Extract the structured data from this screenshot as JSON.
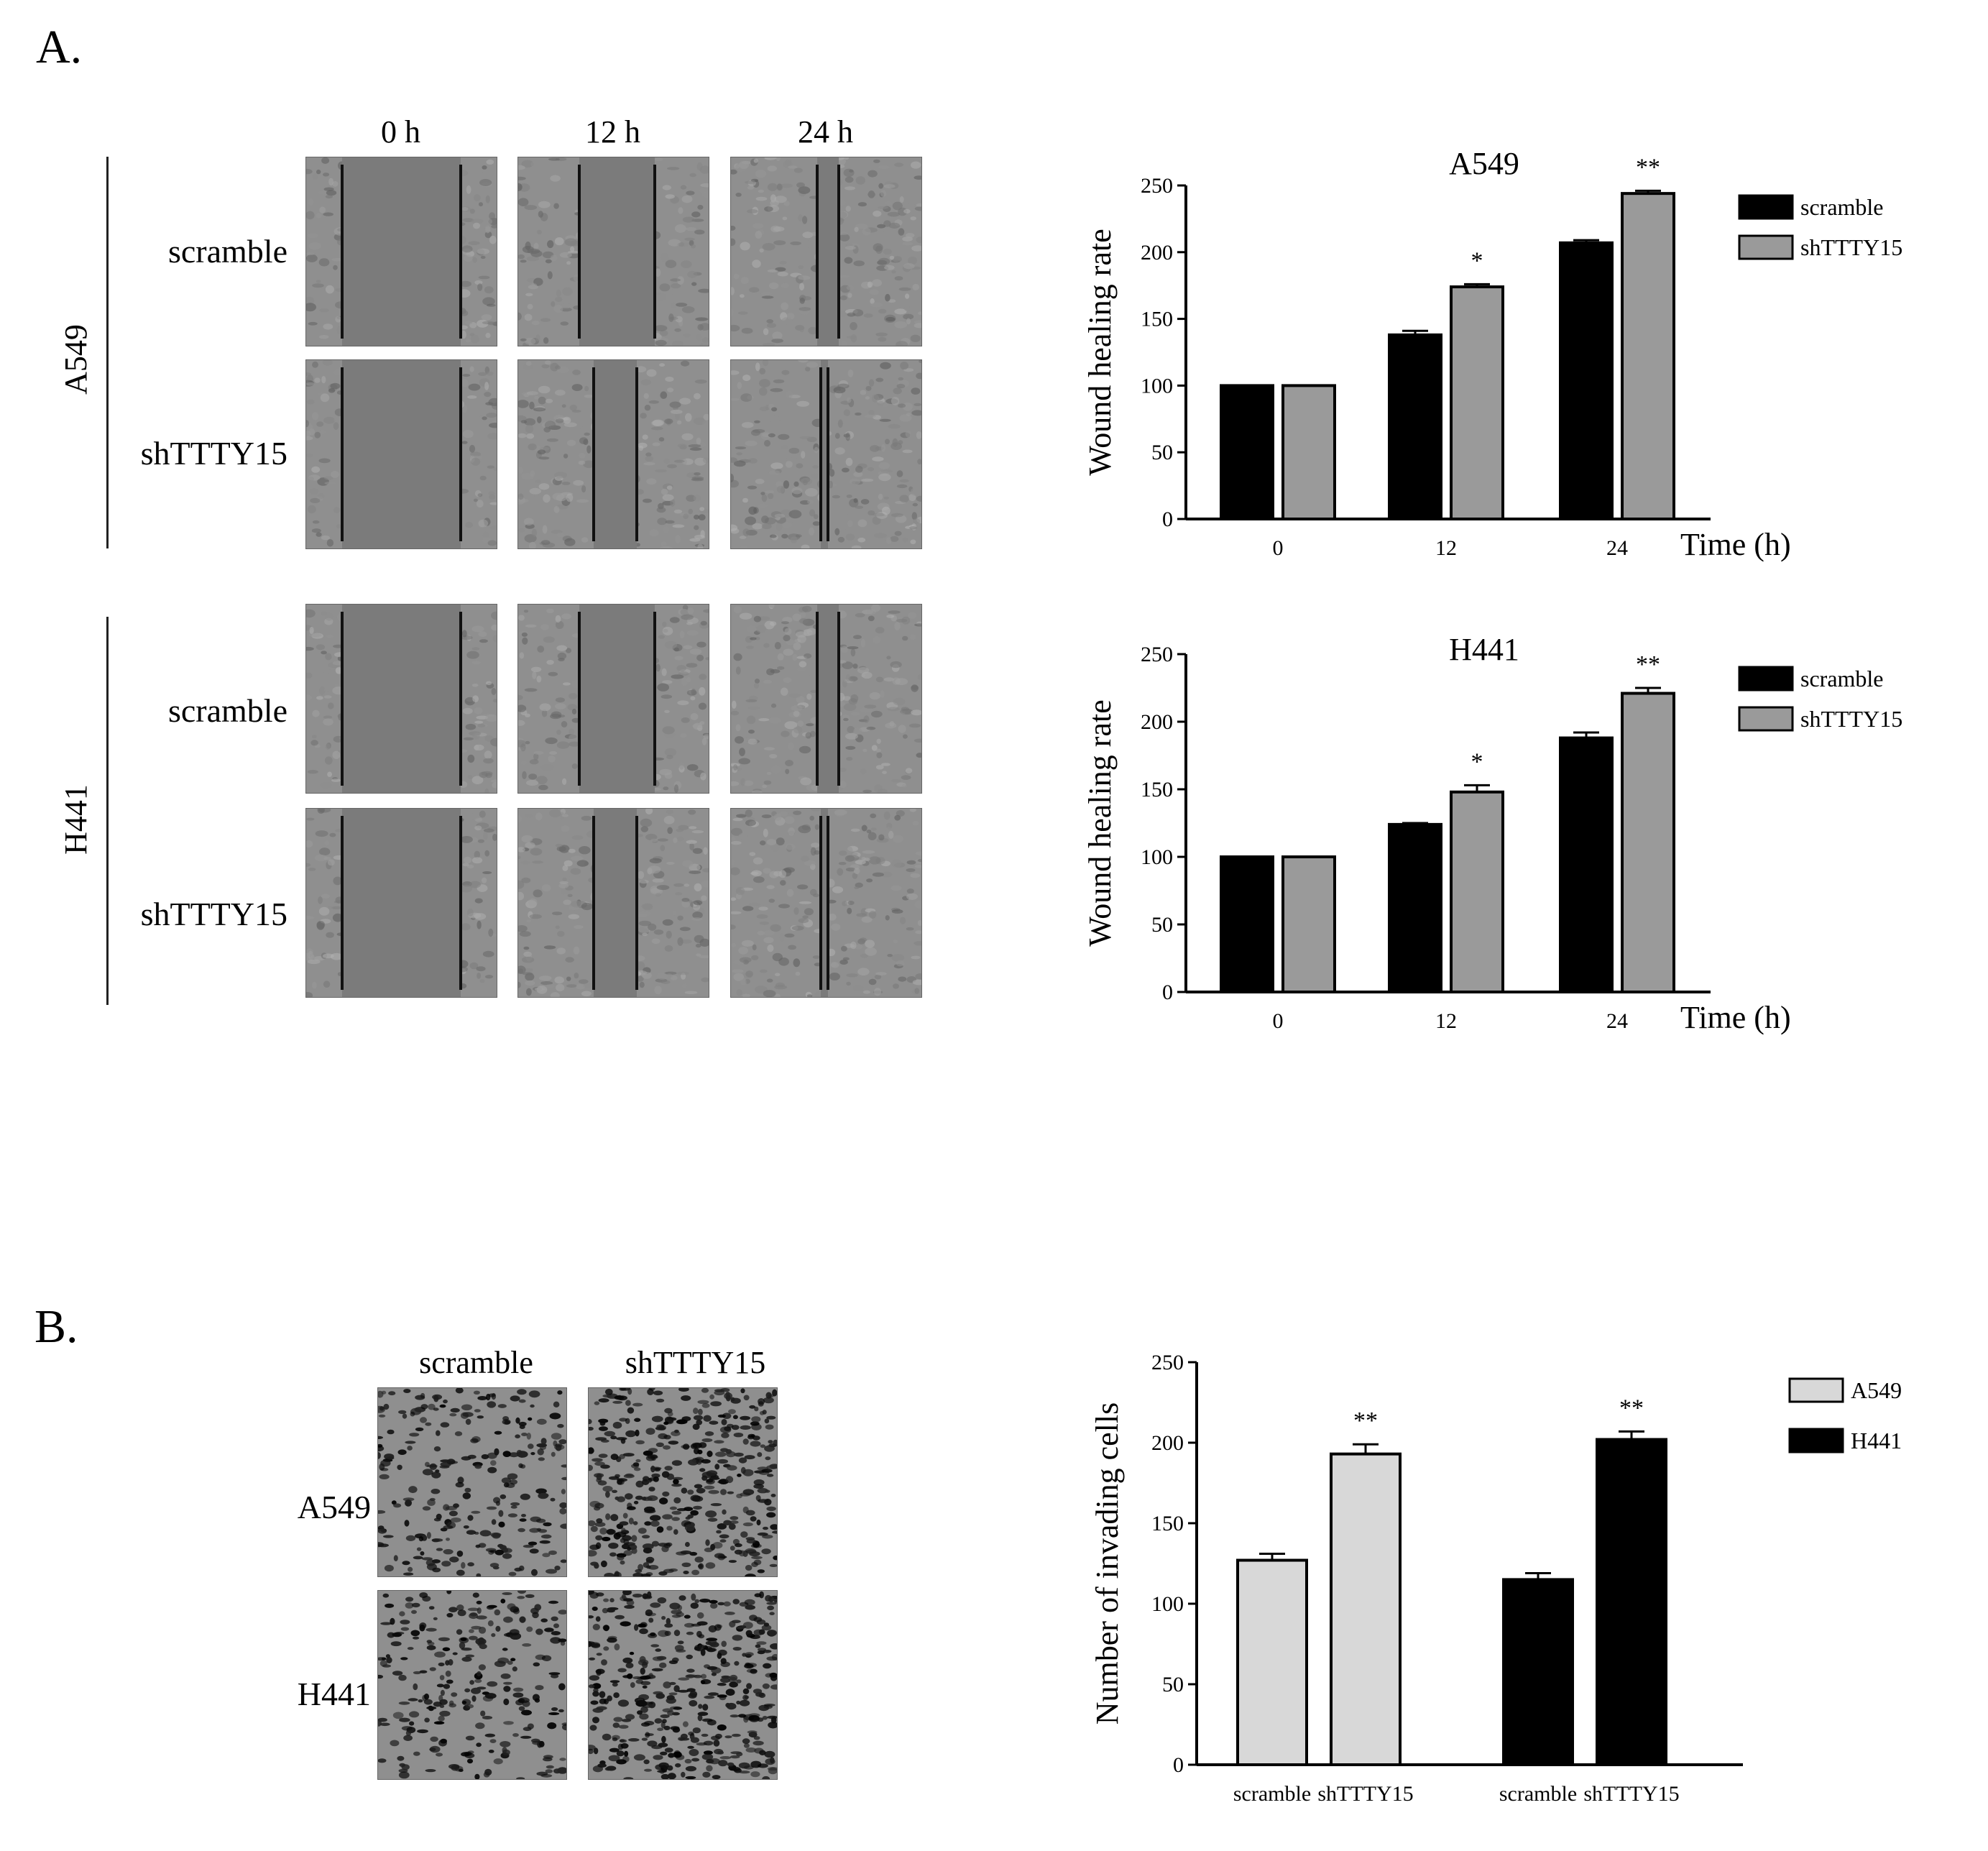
{
  "panels": {
    "A": {
      "letter": "A.",
      "wound_images": {
        "time_labels": [
          "0 h",
          "12 h",
          "24 h"
        ],
        "groups": [
          {
            "name": "A549",
            "rows": [
              "scramble",
              "shTTTY15"
            ]
          },
          {
            "name": "H441",
            "rows": [
              "scramble",
              "shTTTY15"
            ]
          }
        ]
      }
    },
    "B": {
      "letter": "B.",
      "invasion_images": {
        "col_labels": [
          "scramble",
          "shTTTY15"
        ],
        "row_labels": [
          "A549",
          "H441"
        ]
      }
    }
  },
  "colors": {
    "black_bar": "#000000",
    "gray_bar": "#9a9a9a",
    "light_bar": "#d8d8d8",
    "micro_bg": "#8f8f8f",
    "micro_gap": "#7b7b7b"
  },
  "chart_data": [
    {
      "type": "bar",
      "title": "A549",
      "ylabel": "Wound healing rate",
      "xlabel": "Time (h)",
      "categories": [
        "0",
        "12",
        "24"
      ],
      "ylim": [
        0,
        250
      ],
      "yticks": [
        0,
        50,
        100,
        150,
        200,
        250
      ],
      "series": [
        {
          "name": "scramble",
          "values": [
            100,
            138,
            207
          ],
          "errors": [
            0,
            3,
            2
          ],
          "color": "#000000"
        },
        {
          "name": "shTTTY15",
          "values": [
            100,
            174,
            244
          ],
          "errors": [
            0,
            2,
            2
          ],
          "color": "#9a9a9a"
        }
      ],
      "annotations": [
        "",
        "*",
        "**"
      ],
      "legend": "right"
    },
    {
      "type": "bar",
      "title": "H441",
      "ylabel": "Wound healing rate",
      "xlabel": "Time (h)",
      "categories": [
        "0",
        "12",
        "24"
      ],
      "ylim": [
        0,
        250
      ],
      "yticks": [
        0,
        50,
        100,
        150,
        200,
        250
      ],
      "series": [
        {
          "name": "scramble",
          "values": [
            100,
            124,
            188
          ],
          "errors": [
            0,
            1,
            4
          ],
          "color": "#000000"
        },
        {
          "name": "shTTTY15",
          "values": [
            100,
            148,
            221
          ],
          "errors": [
            0,
            5,
            4
          ],
          "color": "#9a9a9a"
        }
      ],
      "annotations": [
        "",
        "*",
        "**"
      ],
      "legend": "right"
    },
    {
      "type": "bar",
      "title": "",
      "ylabel": "Number of invading cells",
      "xlabel": "",
      "categories": [
        "scramble",
        "shTTTY15",
        "scramble",
        "shTTTY15"
      ],
      "ylim": [
        0,
        250
      ],
      "yticks": [
        0,
        50,
        100,
        150,
        200,
        250
      ],
      "series": [
        {
          "name": "A549",
          "values": [
            127,
            193,
            null,
            null
          ],
          "errors": [
            4,
            6,
            null,
            null
          ],
          "color": "#d8d8d8"
        },
        {
          "name": "H441",
          "values": [
            null,
            null,
            115,
            202
          ],
          "errors": [
            null,
            null,
            4,
            5
          ],
          "color": "#000000"
        }
      ],
      "annotations": [
        "",
        "**",
        "",
        "**"
      ],
      "legend": "right"
    }
  ]
}
